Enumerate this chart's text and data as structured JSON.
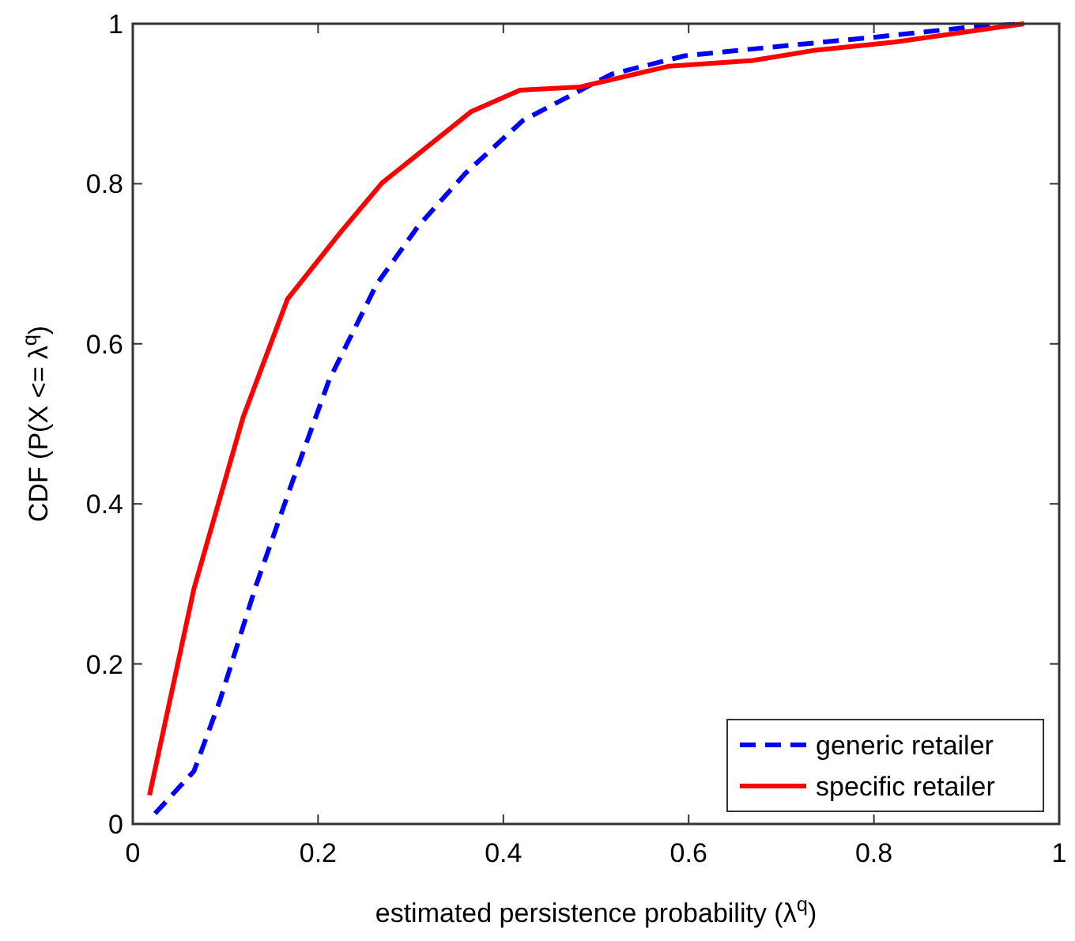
{
  "chart_data": {
    "type": "line",
    "xlabel": "estimated persistence probability (λ$^{q}$)",
    "ylabel": "CDF (P(X <= λ$^{q}$)",
    "xlim": [
      0,
      1
    ],
    "ylim": [
      0,
      1
    ],
    "xticks": [
      0,
      0.2,
      0.4,
      0.6,
      0.8,
      1
    ],
    "yticks": [
      0,
      0.2,
      0.4,
      0.6,
      0.8,
      1
    ],
    "grid": false,
    "legend": "bottom right",
    "series": [
      {
        "name": "generic retailer",
        "color": "#0000ff",
        "line_style": "dashed",
        "x": [
          0.024,
          0.066,
          0.094,
          0.133,
          0.173,
          0.212,
          0.263,
          0.308,
          0.359,
          0.421,
          0.5,
          0.517,
          0.596,
          0.709,
          0.799,
          0.906,
          0.962
        ],
        "values": [
          0.013,
          0.066,
          0.154,
          0.298,
          0.43,
          0.555,
          0.674,
          0.747,
          0.813,
          0.879,
          0.927,
          0.937,
          0.96,
          0.973,
          0.983,
          0.996,
          1
        ]
      },
      {
        "name": "specific retailer",
        "color": "#ff0000",
        "line_style": "solid",
        "x": [
          0.018,
          0.066,
          0.119,
          0.167,
          0.224,
          0.269,
          0.365,
          0.418,
          0.483,
          0.579,
          0.669,
          0.737,
          0.822,
          0.962
        ],
        "values": [
          0.036,
          0.294,
          0.508,
          0.656,
          0.739,
          0.801,
          0.89,
          0.917,
          0.921,
          0.947,
          0.954,
          0.967,
          0.977,
          1
        ]
      }
    ]
  }
}
